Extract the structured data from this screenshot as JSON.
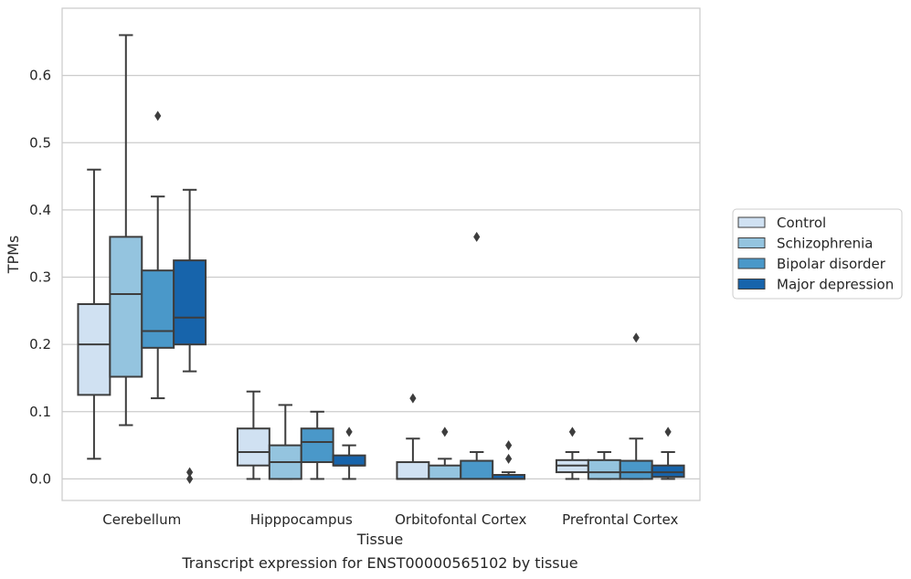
{
  "chart_data": {
    "type": "box",
    "title": "Transcript expression for ENST00000565102 by tissue",
    "xlabel": "Tissue",
    "ylabel": "TPMs",
    "ylim": [
      -0.032,
      0.7
    ],
    "yticks": [
      0.0,
      0.1,
      0.2,
      0.3,
      0.4,
      0.5,
      0.6
    ],
    "ytick_labels": [
      "0.0",
      "0.1",
      "0.2",
      "0.3",
      "0.4",
      "0.5",
      "0.6"
    ],
    "grid": "horizontal",
    "legend_position": "right",
    "categories": [
      "Cerebellum",
      "Hipppocampus",
      "Orbitofontal Cortex",
      "Prefrontal Cortex"
    ],
    "series": [
      {
        "name": "Control",
        "color": "#d0e1f2",
        "boxes": [
          {
            "whislo": 0.03,
            "q1": 0.125,
            "med": 0.2,
            "q3": 0.26,
            "whishi": 0.46,
            "fliers": []
          },
          {
            "whislo": 0.0,
            "q1": 0.02,
            "med": 0.04,
            "q3": 0.075,
            "whishi": 0.13,
            "fliers": []
          },
          {
            "whislo": 0.0,
            "q1": 0.0,
            "med": 0.0,
            "q3": 0.025,
            "whishi": 0.06,
            "fliers": [
              0.12
            ]
          },
          {
            "whislo": 0.0,
            "q1": 0.01,
            "med": 0.02,
            "q3": 0.028,
            "whishi": 0.04,
            "fliers": [
              0.07
            ]
          }
        ]
      },
      {
        "name": "Schizophrenia",
        "color": "#94c4df",
        "boxes": [
          {
            "whislo": 0.08,
            "q1": 0.152,
            "med": 0.275,
            "q3": 0.36,
            "whishi": 0.66,
            "fliers": []
          },
          {
            "whislo": 0.0,
            "q1": 0.0,
            "med": 0.025,
            "q3": 0.05,
            "whishi": 0.11,
            "fliers": []
          },
          {
            "whislo": 0.0,
            "q1": 0.0,
            "med": 0.0,
            "q3": 0.02,
            "whishi": 0.03,
            "fliers": [
              0.07
            ]
          },
          {
            "whislo": 0.0,
            "q1": 0.0,
            "med": 0.01,
            "q3": 0.028,
            "whishi": 0.04,
            "fliers": []
          }
        ]
      },
      {
        "name": "Bipolar disorder",
        "color": "#4a98c9",
        "boxes": [
          {
            "whislo": 0.12,
            "q1": 0.195,
            "med": 0.22,
            "q3": 0.31,
            "whishi": 0.42,
            "fliers": [
              0.54
            ]
          },
          {
            "whislo": 0.0,
            "q1": 0.025,
            "med": 0.055,
            "q3": 0.075,
            "whishi": 0.1,
            "fliers": []
          },
          {
            "whislo": 0.0,
            "q1": 0.0,
            "med": 0.0,
            "q3": 0.027,
            "whishi": 0.04,
            "fliers": [
              0.36
            ]
          },
          {
            "whislo": 0.0,
            "q1": 0.0,
            "med": 0.01,
            "q3": 0.027,
            "whishi": 0.06,
            "fliers": [
              0.21
            ]
          }
        ]
      },
      {
        "name": "Major depression",
        "color": "#1764ab",
        "boxes": [
          {
            "whislo": 0.16,
            "q1": 0.2,
            "med": 0.24,
            "q3": 0.325,
            "whishi": 0.43,
            "fliers": [
              0.0,
              0.01
            ]
          },
          {
            "whislo": 0.0,
            "q1": 0.02,
            "med": 0.02,
            "q3": 0.035,
            "whishi": 0.05,
            "fliers": [
              0.07
            ]
          },
          {
            "whislo": 0.0,
            "q1": 0.0,
            "med": 0.0,
            "q3": 0.006,
            "whishi": 0.01,
            "fliers": [
              0.03,
              0.05
            ]
          },
          {
            "whislo": 0.0,
            "q1": 0.003,
            "med": 0.01,
            "q3": 0.02,
            "whishi": 0.04,
            "fliers": [
              0.07
            ]
          }
        ]
      }
    ]
  }
}
